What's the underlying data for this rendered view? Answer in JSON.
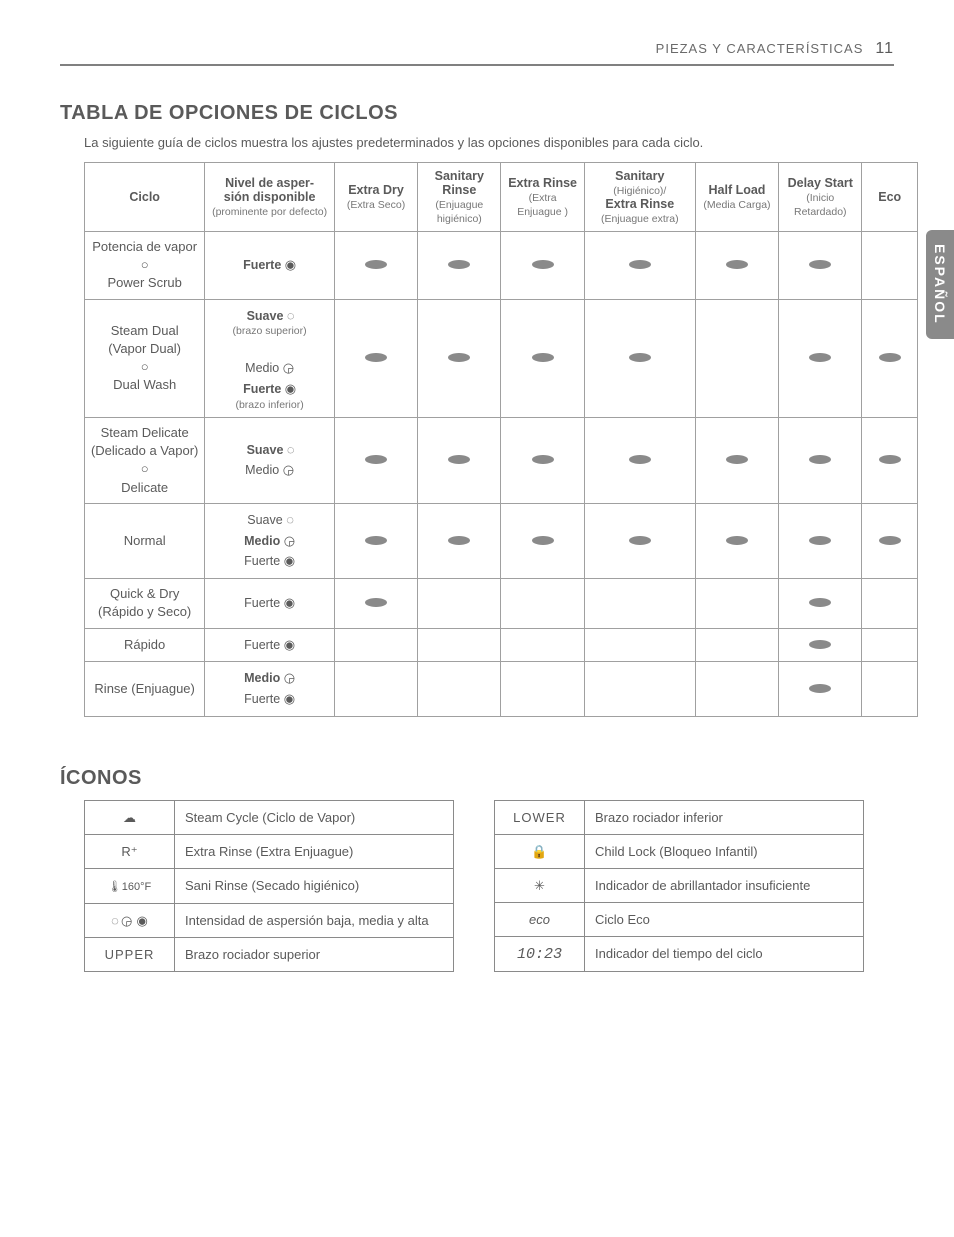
{
  "header": {
    "section": "PIEZAS Y CARACTERÍSTICAS",
    "page": "11"
  },
  "sidetab": "ESPAÑOL",
  "s1": {
    "title": "TABLA DE OPCIONES DE CICLOS",
    "intro": "La siguiente guía de ciclos muestra los ajustes predeterminados y las opciones disponibles para cada ciclo."
  },
  "cols": {
    "c0": "Ciclo",
    "c1_l1": "Nivel de asper-",
    "c1_l2": "sión disponible",
    "c1_sub": "(prominente por defecto)",
    "c2_l1": "Extra Dry",
    "c2_sub": "(Extra Seco)",
    "c3_l1": "Sanitary",
    "c3_l2": "Rinse",
    "c3_sub": "(Enjuague higiénico)",
    "c4_l1": "Extra Rinse",
    "c4_sub": "(Extra Enjuague )",
    "c5_l1": "Sanitary",
    "c5_sub1": "(Higiénico)/",
    "c5_l2": "Extra Rinse",
    "c5_sub2": "(Enjuague extra)",
    "c6_l1": "Half Load",
    "c6_sub": "(Media Carga)",
    "c7_l1": "Delay Start",
    "c7_sub": "(Inicio Retardado)",
    "c8": "Eco"
  },
  "labels": {
    "suave": "Suave",
    "medio": "Medio",
    "fuerte": "Fuerte",
    "brazo_sup": "(brazo superior)",
    "brazo_inf": "(brazo inferior)"
  },
  "rows": [
    {
      "name_l1": "Potencia de vapor",
      "name_l2": "○",
      "name_l3": "Power Scrub",
      "spray": [
        {
          "t": "Fuerte",
          "b": true,
          "i": "spiral-2"
        }
      ],
      "opts": [
        true,
        true,
        true,
        true,
        true,
        true,
        false
      ]
    },
    {
      "name_l1": "Steam Dual",
      "name_l2": "(Vapor Dual)",
      "name_l3": "○",
      "name_l4": "Dual Wash",
      "spray": [
        {
          "t": "Suave",
          "b": true,
          "i": "spiral-dash",
          "note": "(brazo superior)"
        },
        {
          "t": "Medio",
          "b": false,
          "i": "spiral-1"
        },
        {
          "t": "Fuerte",
          "b": true,
          "i": "spiral-2",
          "note": "(brazo inferior)"
        }
      ],
      "opts": [
        true,
        true,
        true,
        true,
        false,
        true,
        true
      ]
    },
    {
      "name_l1": "Steam Delicate",
      "name_l2": "(Delicado a Vapor)",
      "name_l3": "○",
      "name_l4": "Delicate",
      "spray": [
        {
          "t": "Suave",
          "b": true,
          "i": "spiral-dash"
        },
        {
          "t": "Medio",
          "b": false,
          "i": "spiral-1"
        }
      ],
      "opts": [
        true,
        true,
        true,
        true,
        true,
        true,
        true
      ]
    },
    {
      "name_l1": "Normal",
      "spray": [
        {
          "t": "Suave",
          "b": false,
          "i": "spiral-dash"
        },
        {
          "t": "Medio",
          "b": true,
          "i": "spiral-1"
        },
        {
          "t": "Fuerte",
          "b": false,
          "i": "spiral-2"
        }
      ],
      "opts": [
        true,
        true,
        true,
        true,
        true,
        true,
        true
      ]
    },
    {
      "name_l1": "Quick & Dry",
      "name_l2": "(Rápido y Seco)",
      "spray": [
        {
          "t": "Fuerte",
          "b": false,
          "i": "spiral-2"
        }
      ],
      "opts": [
        true,
        false,
        false,
        false,
        false,
        true,
        false
      ]
    },
    {
      "name_l1": "Rápido",
      "spray": [
        {
          "t": "Fuerte",
          "b": false,
          "i": "spiral-2"
        }
      ],
      "opts": [
        false,
        false,
        false,
        false,
        false,
        true,
        false
      ]
    },
    {
      "name_l1": "Rinse (Enjuague)",
      "spray": [
        {
          "t": "Medio",
          "b": true,
          "i": "spiral-1"
        },
        {
          "t": "Fuerte",
          "b": false,
          "i": "spiral-2"
        }
      ],
      "opts": [
        false,
        false,
        false,
        false,
        false,
        true,
        false
      ]
    }
  ],
  "s2": {
    "title": "ÍCONOS"
  },
  "legendA": [
    {
      "icon": "cloud",
      "text": "Steam Cycle (Ciclo de Vapor)"
    },
    {
      "icon": "r",
      "text": "Extra Rinse (Extra Enjuague)"
    },
    {
      "icon": "therm",
      "text": "Sani Rinse (Secado higiénico)"
    },
    {
      "icon": "spirals",
      "text": "Intensidad de aspersión baja, media y alta"
    },
    {
      "icon": "upper",
      "text": "Brazo rociador superior"
    }
  ],
  "legendB": [
    {
      "icon": "lower",
      "text": "Brazo rociador inferior"
    },
    {
      "icon": "lock",
      "text": "Child Lock (Bloqueo Infantil)"
    },
    {
      "icon": "sun",
      "text": "Indicador de abrillantador insuficiente"
    },
    {
      "icon": "eco",
      "text": "Ciclo Eco"
    },
    {
      "icon": "clock",
      "text": "Indicador del tiempo del ciclo"
    }
  ]
}
